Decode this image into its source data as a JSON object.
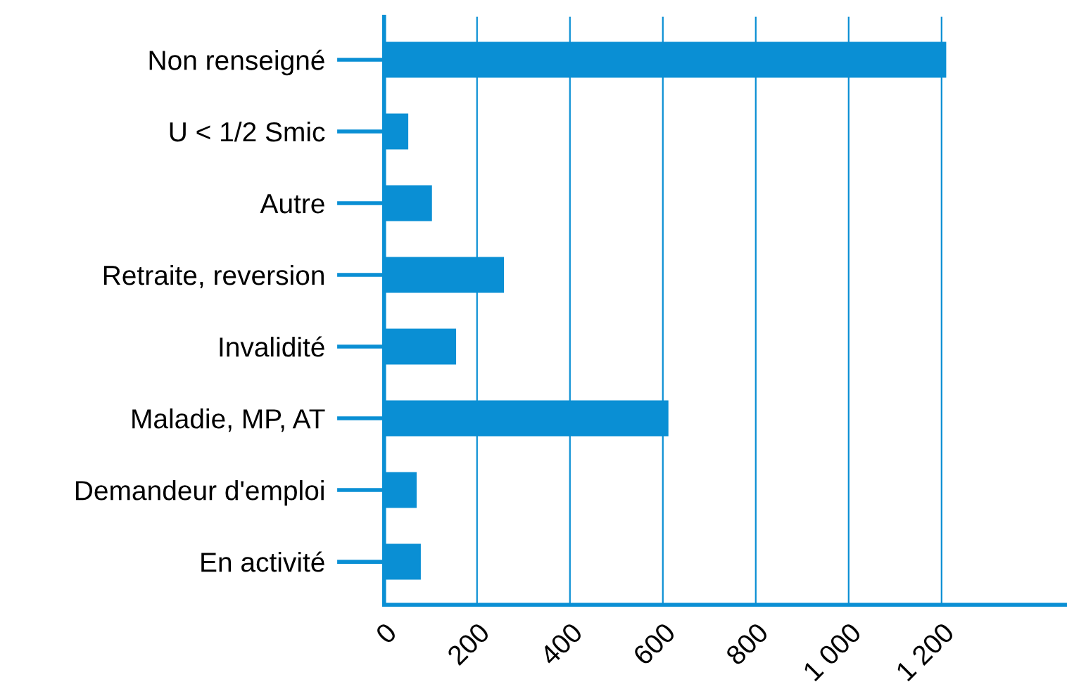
{
  "chart_data": {
    "type": "bar",
    "orientation": "horizontal",
    "categories": [
      "Non renseigné",
      "U < 1/2 Smic",
      "Autre",
      "Retraite, reversion",
      "Invalidité",
      "Maladie, MP, AT",
      "Demandeur d'emploi",
      "En activité"
    ],
    "values": [
      1210,
      52,
      103,
      258,
      155,
      612,
      70,
      79
    ],
    "color": "#0a8fd4",
    "xlim": [
      0,
      1470
    ],
    "xticks": [
      0,
      200,
      400,
      600,
      800,
      {
        "value": 1000,
        "label": "1 000"
      },
      {
        "value": 1200,
        "label": "1 200"
      }
    ],
    "grid": "x"
  }
}
